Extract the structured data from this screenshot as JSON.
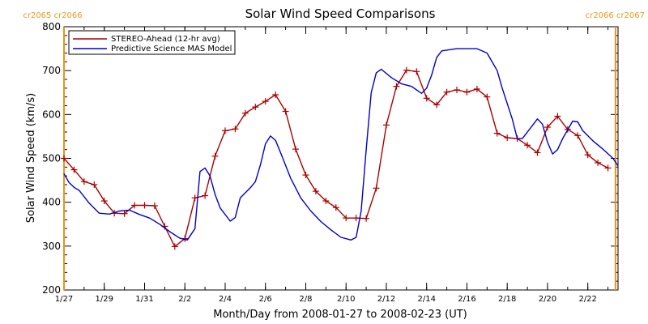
{
  "chart_data": {
    "type": "line",
    "title": "Solar Wind Speed Comparisons",
    "xlabel": "Month/Day from 2008-01-27 to 2008-02-23 (UT)",
    "ylabel": "Solar Wind Speed (km/s)",
    "ylim": [
      200,
      800
    ],
    "yticks": [
      200,
      300,
      400,
      500,
      600,
      700,
      800
    ],
    "xlim": [
      "2008-01-27",
      "2008-02-23 12:00"
    ],
    "xticks": [
      {
        "date": "2008-01-27",
        "label": "1/27"
      },
      {
        "date": "2008-01-29",
        "label": "1/29"
      },
      {
        "date": "2008-01-31",
        "label": "1/31"
      },
      {
        "date": "2008-02-02",
        "label": "2/2"
      },
      {
        "date": "2008-02-04",
        "label": "2/4"
      },
      {
        "date": "2008-02-06",
        "label": "2/6"
      },
      {
        "date": "2008-02-08",
        "label": "2/8"
      },
      {
        "date": "2008-02-10",
        "label": "2/10"
      },
      {
        "date": "2008-02-12",
        "label": "2/12"
      },
      {
        "date": "2008-02-14",
        "label": "2/14"
      },
      {
        "date": "2008-02-16",
        "label": "2/16"
      },
      {
        "date": "2008-02-18",
        "label": "2/18"
      },
      {
        "date": "2008-02-20",
        "label": "2/20"
      },
      {
        "date": "2008-02-22",
        "label": "2/22"
      }
    ],
    "carrington_markers": [
      {
        "date": "2008-01-27",
        "labels": [
          "cr2065",
          "cr2066"
        ]
      },
      {
        "date": "2008-02-23 09:00",
        "labels": [
          "cr2066",
          "cr2067"
        ]
      }
    ],
    "legend_position": "top-left",
    "grid": false,
    "series": [
      {
        "name": "STEREO-Ahead (12-hr avg)",
        "color": "#aa0000",
        "marker": "+",
        "points": [
          [
            "2008-01-27 00:00",
            500
          ],
          [
            "2008-01-27 12:00",
            474
          ],
          [
            "2008-01-28 00:00",
            447
          ],
          [
            "2008-01-28 12:00",
            440
          ],
          [
            "2008-01-29 00:00",
            403
          ],
          [
            "2008-01-29 12:00",
            375
          ],
          [
            "2008-01-30 00:00",
            374
          ],
          [
            "2008-01-30 12:00",
            393
          ],
          [
            "2008-01-31 00:00",
            393
          ],
          [
            "2008-01-31 12:00",
            392
          ],
          [
            "2008-02-01 00:00",
            345
          ],
          [
            "2008-02-01 12:00",
            299
          ],
          [
            "2008-02-02 00:00",
            317
          ],
          [
            "2008-02-02 12:00",
            410
          ],
          [
            "2008-02-03 00:00",
            415
          ],
          [
            "2008-02-03 12:00",
            505
          ],
          [
            "2008-02-04 00:00",
            563
          ],
          [
            "2008-02-04 12:00",
            567
          ],
          [
            "2008-02-05 00:00",
            603
          ],
          [
            "2008-02-05 12:00",
            617
          ],
          [
            "2008-02-06 00:00",
            630
          ],
          [
            "2008-02-06 12:00",
            645
          ],
          [
            "2008-02-07 00:00",
            607
          ],
          [
            "2008-02-07 12:00",
            521
          ],
          [
            "2008-02-08 00:00",
            462
          ],
          [
            "2008-02-08 12:00",
            425
          ],
          [
            "2008-02-09 00:00",
            403
          ],
          [
            "2008-02-09 12:00",
            388
          ],
          [
            "2008-02-10 00:00",
            364
          ],
          [
            "2008-02-10 12:00",
            364
          ],
          [
            "2008-02-11 00:00",
            363
          ],
          [
            "2008-02-11 12:00",
            432
          ],
          [
            "2008-02-12 00:00",
            576
          ],
          [
            "2008-02-12 12:00",
            664
          ],
          [
            "2008-02-13 00:00",
            701
          ],
          [
            "2008-02-13 12:00",
            698
          ],
          [
            "2008-02-14 00:00",
            637
          ],
          [
            "2008-02-14 12:00",
            622
          ],
          [
            "2008-02-15 00:00",
            651
          ],
          [
            "2008-02-15 12:00",
            656
          ],
          [
            "2008-02-16 00:00",
            651
          ],
          [
            "2008-02-16 12:00",
            658
          ],
          [
            "2008-02-17 00:00",
            640
          ],
          [
            "2008-02-17 12:00",
            557
          ],
          [
            "2008-02-18 00:00",
            547
          ],
          [
            "2008-02-18 12:00",
            545
          ],
          [
            "2008-02-19 00:00",
            530
          ],
          [
            "2008-02-19 12:00",
            513
          ],
          [
            "2008-02-20 00:00",
            571
          ],
          [
            "2008-02-20 12:00",
            596
          ],
          [
            "2008-02-21 00:00",
            566
          ],
          [
            "2008-02-21 12:00",
            552
          ],
          [
            "2008-02-22 00:00",
            508
          ],
          [
            "2008-02-22 12:00",
            490
          ],
          [
            "2008-02-23 00:00",
            478
          ]
        ]
      },
      {
        "name": "Predictive Science MAS Model",
        "color": "#0000cc",
        "marker": "",
        "points": [
          [
            "2008-01-27 00:00",
            465
          ],
          [
            "2008-01-27 06:00",
            445
          ],
          [
            "2008-01-27 12:00",
            434
          ],
          [
            "2008-01-27 18:00",
            427
          ],
          [
            "2008-01-28 06:00",
            398
          ],
          [
            "2008-01-28 18:00",
            375
          ],
          [
            "2008-01-29 06:00",
            373
          ],
          [
            "2008-01-29 18:00",
            380
          ],
          [
            "2008-01-30 06:00",
            382
          ],
          [
            "2008-01-30 18:00",
            372
          ],
          [
            "2008-01-31 06:00",
            364
          ],
          [
            "2008-01-31 18:00",
            350
          ],
          [
            "2008-02-01 06:00",
            333
          ],
          [
            "2008-02-01 18:00",
            318
          ],
          [
            "2008-02-02 03:00",
            314
          ],
          [
            "2008-02-02 12:00",
            340
          ],
          [
            "2008-02-02 18:00",
            470
          ],
          [
            "2008-02-03 00:00",
            478
          ],
          [
            "2008-02-03 06:00",
            460
          ],
          [
            "2008-02-03 12:00",
            418
          ],
          [
            "2008-02-03 18:00",
            387
          ],
          [
            "2008-02-04 06:00",
            357
          ],
          [
            "2008-02-04 12:00",
            365
          ],
          [
            "2008-02-04 18:00",
            410
          ],
          [
            "2008-02-05 06:00",
            433
          ],
          [
            "2008-02-05 12:00",
            447
          ],
          [
            "2008-02-05 18:00",
            485
          ],
          [
            "2008-02-06 00:00",
            533
          ],
          [
            "2008-02-06 06:00",
            551
          ],
          [
            "2008-02-06 12:00",
            541
          ],
          [
            "2008-02-06 18:00",
            513
          ],
          [
            "2008-02-07 06:00",
            455
          ],
          [
            "2008-02-07 18:00",
            410
          ],
          [
            "2008-02-08 06:00",
            380
          ],
          [
            "2008-02-08 18:00",
            356
          ],
          [
            "2008-02-09 06:00",
            337
          ],
          [
            "2008-02-09 18:00",
            320
          ],
          [
            "2008-02-10 06:00",
            314
          ],
          [
            "2008-02-10 12:00",
            320
          ],
          [
            "2008-02-10 18:00",
            380
          ],
          [
            "2008-02-11 00:00",
            520
          ],
          [
            "2008-02-11 06:00",
            650
          ],
          [
            "2008-02-11 12:00",
            695
          ],
          [
            "2008-02-11 18:00",
            703
          ],
          [
            "2008-02-12 06:00",
            684
          ],
          [
            "2008-02-12 18:00",
            670
          ],
          [
            "2008-02-13 06:00",
            664
          ],
          [
            "2008-02-13 18:00",
            648
          ],
          [
            "2008-02-14 00:00",
            660
          ],
          [
            "2008-02-14 06:00",
            690
          ],
          [
            "2008-02-14 12:00",
            730
          ],
          [
            "2008-02-14 18:00",
            745
          ],
          [
            "2008-02-15 12:00",
            750
          ],
          [
            "2008-02-16 12:00",
            750
          ],
          [
            "2008-02-17 00:00",
            740
          ],
          [
            "2008-02-17 12:00",
            700
          ],
          [
            "2008-02-17 18:00",
            660
          ],
          [
            "2008-02-18 06:00",
            590
          ],
          [
            "2008-02-18 12:00",
            545
          ],
          [
            "2008-02-18 18:00",
            545
          ],
          [
            "2008-02-19 06:00",
            575
          ],
          [
            "2008-02-19 12:00",
            590
          ],
          [
            "2008-02-19 18:00",
            578
          ],
          [
            "2008-02-20 00:00",
            537
          ],
          [
            "2008-02-20 06:00",
            510
          ],
          [
            "2008-02-20 12:00",
            520
          ],
          [
            "2008-02-20 18:00",
            545
          ],
          [
            "2008-02-21 06:00",
            585
          ],
          [
            "2008-02-21 12:00",
            583
          ],
          [
            "2008-02-21 18:00",
            563
          ],
          [
            "2008-02-22 06:00",
            540
          ],
          [
            "2008-02-22 18:00",
            521
          ],
          [
            "2008-02-23 06:00",
            500
          ],
          [
            "2008-02-23 12:00",
            483
          ]
        ]
      }
    ]
  }
}
